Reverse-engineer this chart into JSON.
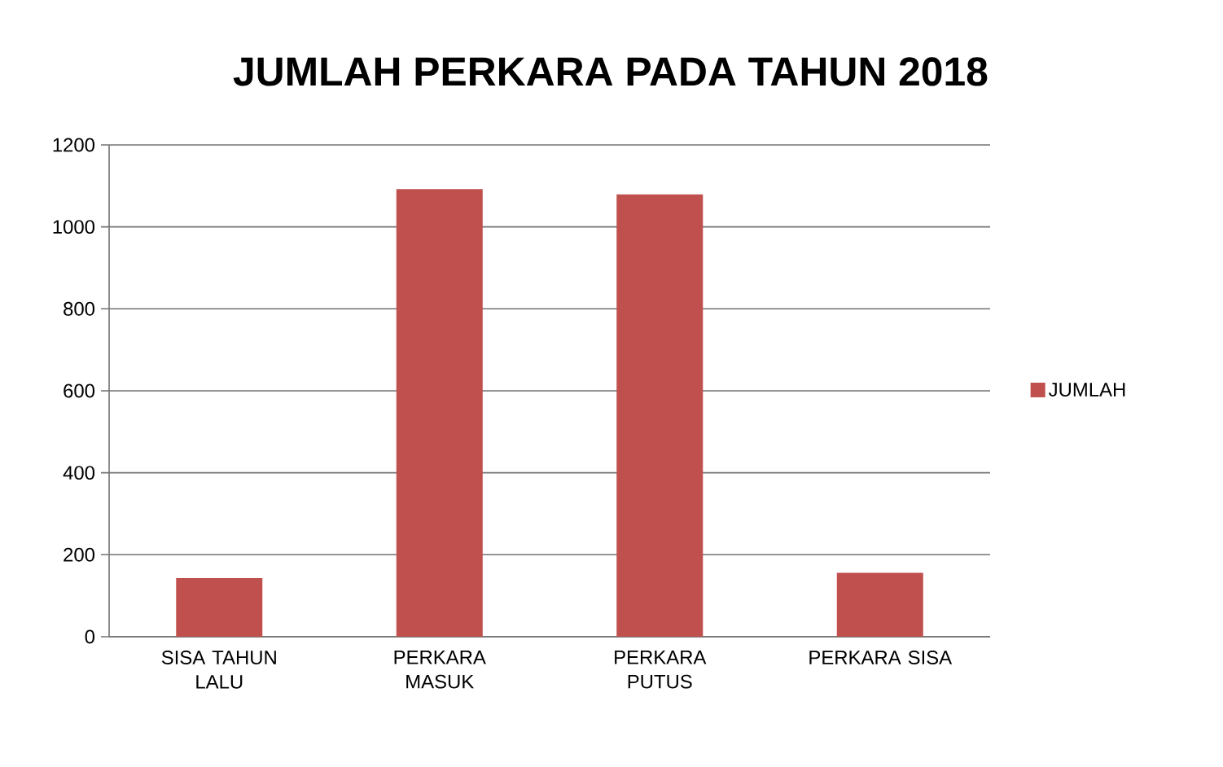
{
  "chart_data": {
    "type": "bar",
    "title": "JUMLAH PERKARA PADA TAHUN 2018",
    "categories": [
      "SISA TAHUN LALU",
      "PERKARA MASUK",
      "PERKARA PUTUS",
      "PERKARA SISA"
    ],
    "series": [
      {
        "name": "JUMLAH",
        "color": "#c0504d",
        "values": [
          143,
          1092,
          1079,
          156
        ]
      }
    ],
    "ylim": [
      0,
      1200
    ],
    "yticks": [
      0,
      200,
      400,
      600,
      800,
      1000,
      1200
    ],
    "grid": "y",
    "legend": "right"
  }
}
